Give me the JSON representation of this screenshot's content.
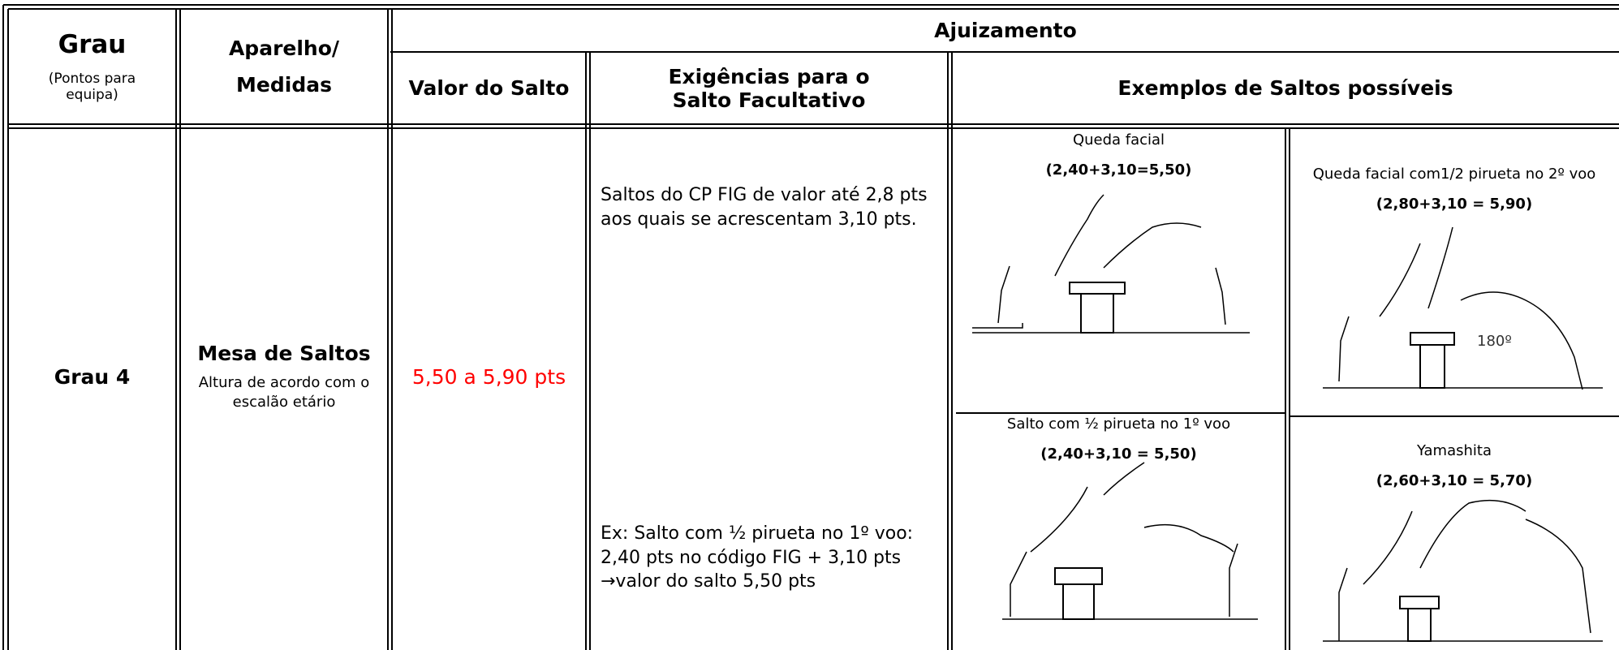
{
  "header": {
    "grau": "Grau",
    "grau_note": "(Pontos para equipa)",
    "aparelho": "Aparelho/",
    "medidas": "Medidas",
    "ajuizamento": "Ajuizamento",
    "valor": "Valor do Salto",
    "exigencias": "Exigências para o Salto Facultativo",
    "exemplos": "Exemplos de Saltos possíveis"
  },
  "row": {
    "grau": "Grau 4",
    "aparelho": "Mesa de Saltos",
    "aparelho_note": "Altura de acordo com o escalão etário",
    "valor": "5,50 a 5,90 pts",
    "exigencias": "Saltos do CP FIG de valor até 2,8 pts aos quais se acrescentam 3,10 pts.",
    "exemplo": "Ex: Salto com ½ pirueta no 1º voo: 2,40 pts no código FIG + 3,10 pts →valor do salto 5,50 pts",
    "examples": [
      {
        "name": "Queda facial",
        "score": "(2,40+3,10=5,50)"
      },
      {
        "name": "Queda facial com1/2 pirueta no 2º voo",
        "score": "(2,80+3,10 = 5,90)",
        "angle": "180º"
      },
      {
        "name": "Salto com ½ pirueta no 1º voo",
        "score": "(2,40+3,10 = 5,50)"
      },
      {
        "name": "Yamashita",
        "score": "(2,60+3,10 = 5,70)"
      }
    ]
  }
}
